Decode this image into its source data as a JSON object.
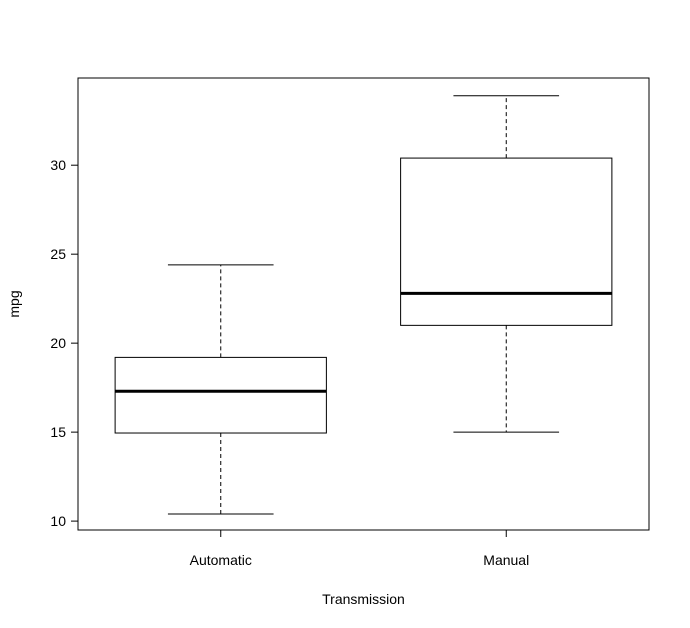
{
  "chart_data": {
    "type": "boxplot",
    "title": "",
    "xlabel": "Transmission",
    "ylabel": "mpg",
    "categories": [
      "Automatic",
      "Manual"
    ],
    "boxes": [
      {
        "category": "Automatic",
        "whisker_low": 10.4,
        "q1": 14.95,
        "median": 17.3,
        "q3": 19.2,
        "whisker_high": 24.4
      },
      {
        "category": "Manual",
        "whisker_low": 15.0,
        "q1": 21.0,
        "median": 22.8,
        "q3": 30.4,
        "whisker_high": 33.9
      }
    ],
    "yticks": [
      10,
      15,
      20,
      25,
      30
    ],
    "ylim": [
      9.5,
      34.9
    ],
    "grid": false,
    "colors": {
      "line": "#000000",
      "box_fill": "#ffffff"
    }
  }
}
